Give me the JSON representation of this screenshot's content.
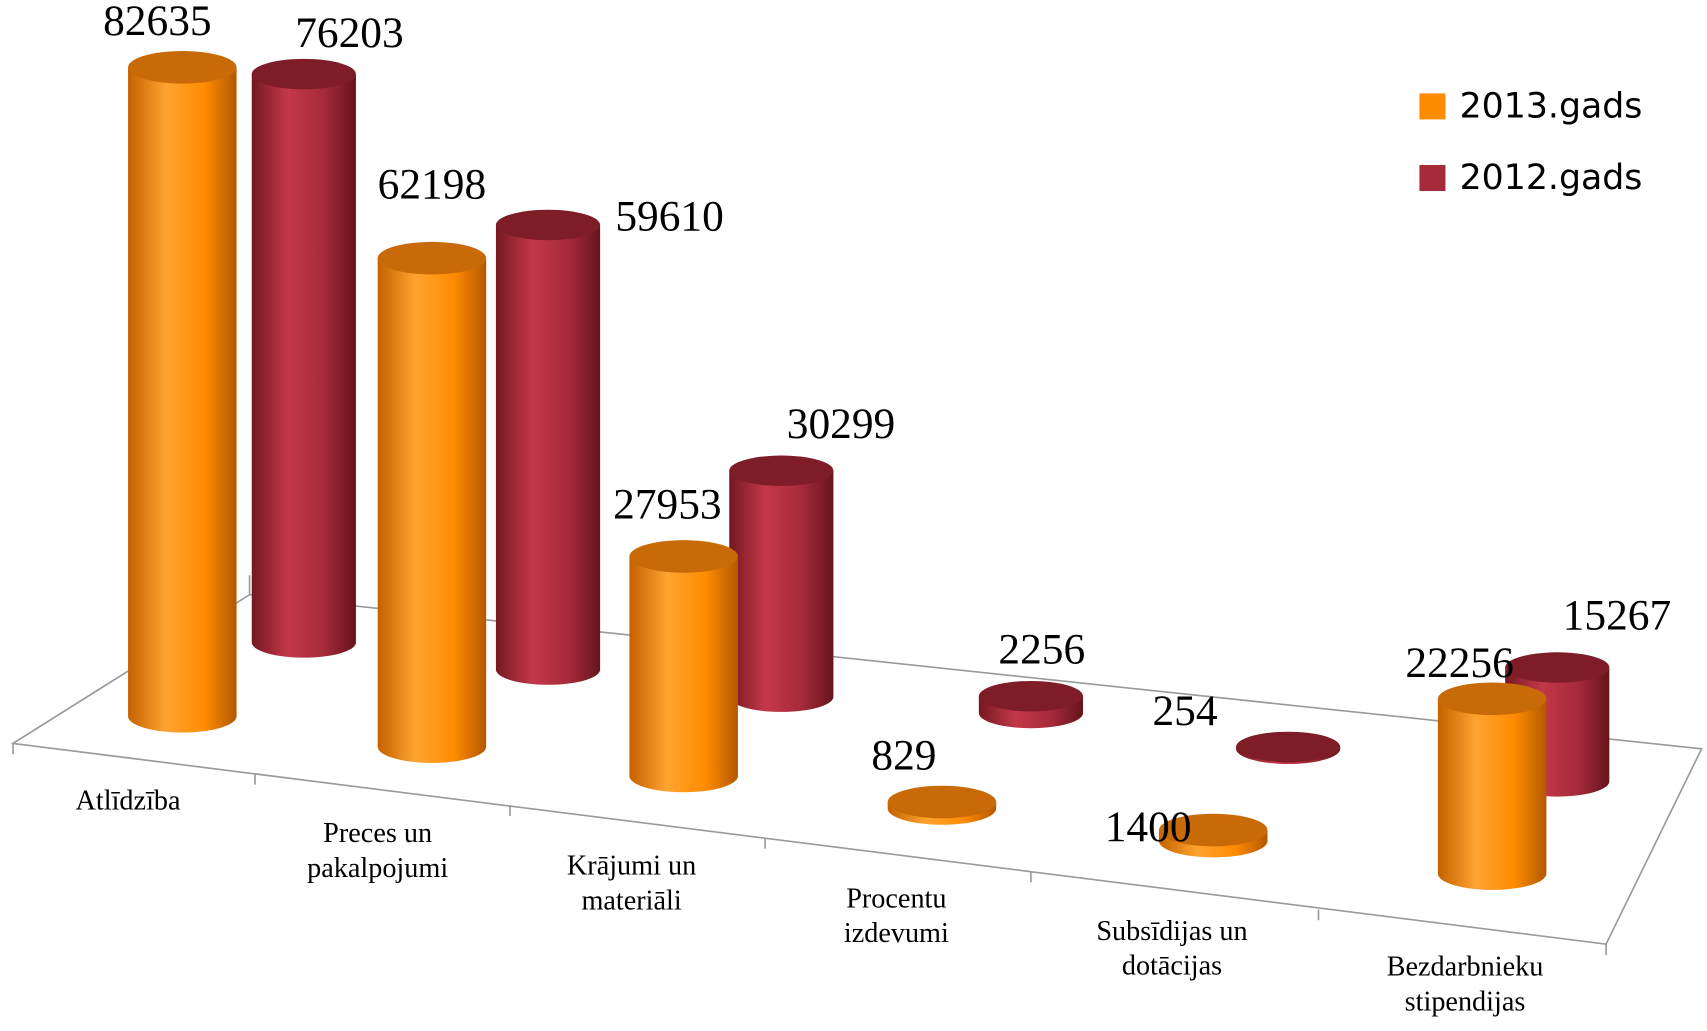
{
  "chart_data": {
    "type": "bar3d",
    "categories": [
      "Atlīdzība",
      "Preces un\npakalpojumi",
      "Krājumi un\nmateriāli",
      "Procentu\nizdevumi",
      "Subsīdijas un\ndotācijas",
      "Bezdarbnieku\nstipendijas"
    ],
    "series": [
      {
        "name": "2013.gads",
        "color": "#ff8c00",
        "values": [
          82635,
          62198,
          27953,
          829,
          1400,
          22256
        ]
      },
      {
        "name": "2012.gads",
        "color": "#a52a3a",
        "values": [
          76203,
          59610,
          30299,
          2256,
          254,
          15267
        ]
      }
    ]
  }
}
